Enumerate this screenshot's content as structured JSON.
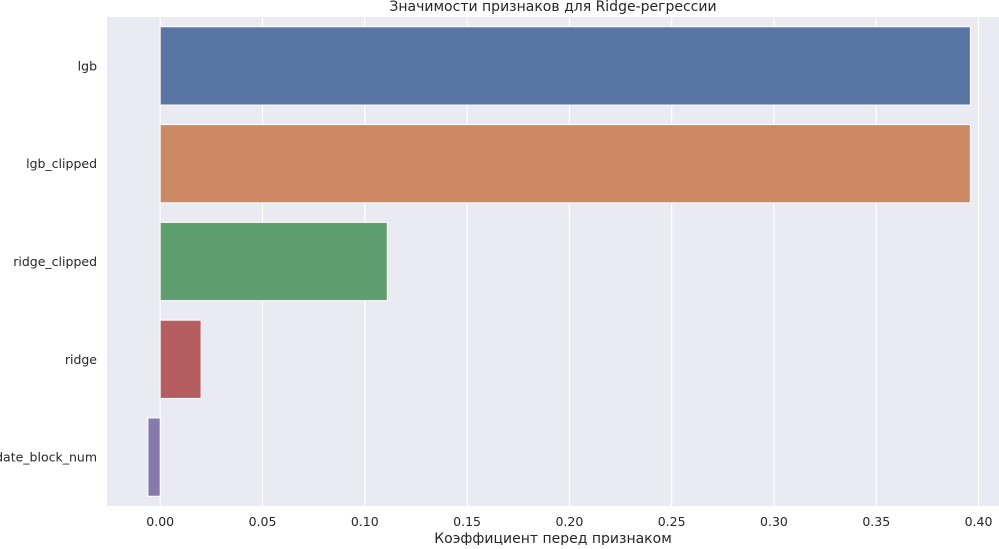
{
  "chart_data": {
    "type": "bar",
    "orientation": "horizontal",
    "title": "Значимости признаков для Ridge-регрессии",
    "xlabel": "Коэффициент перед признаком",
    "ylabel": "",
    "categories": [
      "lgb",
      "lgb_clipped",
      "ridge_clipped",
      "ridge",
      "date_block_num"
    ],
    "values": [
      0.396,
      0.396,
      0.111,
      0.02,
      -0.006
    ],
    "xlim": [
      -0.026,
      0.41
    ],
    "xticks": [
      0.0,
      0.05,
      0.1,
      0.15,
      0.2,
      0.25,
      0.3,
      0.35,
      0.4
    ],
    "xtick_labels": [
      "0.00",
      "0.05",
      "0.10",
      "0.15",
      "0.20",
      "0.25",
      "0.30",
      "0.35",
      "0.40"
    ],
    "grid": true,
    "colors": {
      "background": "#eaeaf2",
      "grid": "#ffffff",
      "bars": [
        "#5875a4",
        "#cc8963",
        "#5f9e6e",
        "#b55d60",
        "#857aab"
      ]
    }
  }
}
